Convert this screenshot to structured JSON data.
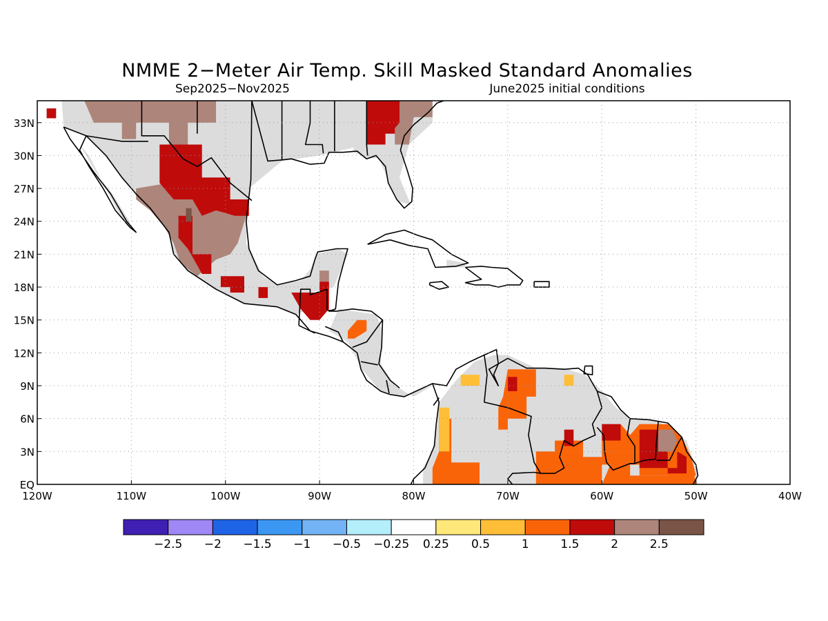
{
  "title": "NMME 2−Meter Air Temp. Skill Masked Standard Anomalies",
  "period": "Sep2025−Nov2025",
  "initial_conditions": "June2025 initial conditions",
  "map": {
    "lon_range": [
      -120,
      -40
    ],
    "lat_range": [
      0,
      35
    ],
    "lon_ticks": [
      {
        "lon": -120,
        "label": "120W"
      },
      {
        "lon": -110,
        "label": "110W"
      },
      {
        "lon": -100,
        "label": "100W"
      },
      {
        "lon": -90,
        "label": "90W"
      },
      {
        "lon": -80,
        "label": "80W"
      },
      {
        "lon": -70,
        "label": "70W"
      },
      {
        "lon": -60,
        "label": "60W"
      },
      {
        "lon": -50,
        "label": "50W"
      },
      {
        "lon": -40,
        "label": "40W"
      }
    ],
    "lat_ticks": [
      {
        "lat": 0,
        "label": "EQ"
      },
      {
        "lat": 3,
        "label": "3N"
      },
      {
        "lat": 6,
        "label": "6N"
      },
      {
        "lat": 9,
        "label": "9N"
      },
      {
        "lat": 12,
        "label": "12N"
      },
      {
        "lat": 15,
        "label": "15N"
      },
      {
        "lat": 18,
        "label": "18N"
      },
      {
        "lat": 21,
        "label": "21N"
      },
      {
        "lat": 24,
        "label": "24N"
      },
      {
        "lat": 27,
        "label": "27N"
      },
      {
        "lat": 30,
        "label": "30N"
      },
      {
        "lat": 33,
        "label": "33N"
      }
    ],
    "grid_lines": "dotted"
  },
  "colorbar": {
    "colors": [
      "#3f1fb4",
      "#9f87f5",
      "#1f64e6",
      "#3c97f3",
      "#73b3f5",
      "#b4eefa",
      "#ffffff",
      "#ffe87a",
      "#ffbe37",
      "#fa6409",
      "#c00b0b",
      "#ad857b",
      "#7a5446"
    ],
    "labels": [
      "−2.5",
      "−2",
      "−1.5",
      "−1",
      "−0.5",
      "−0.25",
      "0.25",
      "0.5",
      "1",
      "1.5",
      "2",
      "2.5"
    ]
  },
  "fill_colors": {
    "masked_gray": "#dcdcdc",
    "anom_1_to_1_5": "#fa6409",
    "anom_1_5_to_2": "#c00b0b",
    "anom_2_to_2_5": "#ad857b",
    "anom_above_2_5": "#7a5446",
    "anom_0_5_to_1": "#ffbe37"
  },
  "regions": [
    {
      "name": "western-us-mexico-masked",
      "cat": "gray",
      "pts": [
        [
          -117.4,
          35
        ],
        [
          -85,
          35
        ],
        [
          -85,
          31
        ],
        [
          -90,
          30
        ],
        [
          -94,
          29.5
        ],
        [
          -97.5,
          27
        ],
        [
          -97.8,
          22
        ],
        [
          -96,
          19
        ],
        [
          -94.5,
          18.2
        ],
        [
          -92,
          18.6
        ],
        [
          -91,
          19.6
        ],
        [
          -90.3,
          21
        ],
        [
          -88,
          21.5
        ],
        [
          -87,
          21
        ],
        [
          -88.5,
          18
        ],
        [
          -91,
          17.5
        ],
        [
          -91,
          16
        ],
        [
          -92.5,
          15.5
        ],
        [
          -94.5,
          16.2
        ],
        [
          -98,
          16.5
        ],
        [
          -101,
          17.8
        ],
        [
          -104,
          19.5
        ],
        [
          -105.5,
          21
        ],
        [
          -106,
          23
        ],
        [
          -108,
          25.2
        ],
        [
          -111,
          28
        ],
        [
          -112.7,
          30
        ],
        [
          -114.8,
          31.8
        ],
        [
          -117.2,
          32.6
        ]
      ]
    },
    {
      "name": "florida-georgia-masked",
      "cat": "gray",
      "pts": [
        [
          -84.5,
          35
        ],
        [
          -78,
          35
        ],
        [
          -78,
          33
        ],
        [
          -80.5,
          31
        ],
        [
          -81.5,
          28
        ],
        [
          -80.3,
          25.5
        ],
        [
          -81.6,
          25.8
        ],
        [
          -82.6,
          27.5
        ],
        [
          -83.7,
          29.8
        ],
        [
          -85,
          29.7
        ],
        [
          -86.5,
          30.4
        ]
      ]
    },
    {
      "name": "baja-masked",
      "cat": "gray",
      "pts": [
        [
          -115.5,
          31
        ],
        [
          -114.5,
          30
        ],
        [
          -113,
          27.5
        ],
        [
          -111.5,
          25
        ],
        [
          -110,
          23.2
        ],
        [
          -110.2,
          24
        ],
        [
          -112,
          26.5
        ],
        [
          -113.8,
          28.5
        ]
      ]
    },
    {
      "name": "cuba-masked",
      "cat": "gray",
      "pts": [
        [
          -76.5,
          20.5
        ],
        [
          -74.5,
          20.2
        ],
        [
          -74.5,
          19.8
        ],
        [
          -76.5,
          19.8
        ]
      ]
    },
    {
      "name": "central-america-masked",
      "cat": "gray",
      "pts": [
        [
          -88,
          16
        ],
        [
          -84,
          15.5
        ],
        [
          -83.3,
          14
        ],
        [
          -83.5,
          11
        ],
        [
          -82,
          9
        ],
        [
          -80,
          8
        ],
        [
          -78,
          9
        ],
        [
          -79.5,
          8.6
        ],
        [
          -81,
          8
        ],
        [
          -83.5,
          8.5
        ],
        [
          -85.5,
          10.5
        ],
        [
          -87,
          13
        ],
        [
          -89,
          14
        ]
      ]
    },
    {
      "name": "south-america-masked",
      "cat": "gray",
      "pts": [
        [
          -79,
          0
        ],
        [
          -79,
          1.5
        ],
        [
          -78,
          3
        ],
        [
          -77.5,
          5.5
        ],
        [
          -77.3,
          7.5
        ],
        [
          -75.5,
          9.5
        ],
        [
          -73.5,
          11.2
        ],
        [
          -71.5,
          11.8
        ],
        [
          -70,
          11.8
        ],
        [
          -67,
          10.6
        ],
        [
          -64,
          10.6
        ],
        [
          -61.8,
          10
        ],
        [
          -60,
          8.5
        ],
        [
          -58.5,
          7
        ],
        [
          -57,
          6
        ],
        [
          -54,
          5.8
        ],
        [
          -52,
          4.5
        ],
        [
          -51,
          4
        ],
        [
          -50,
          1.5
        ],
        [
          -49.8,
          0
        ]
      ]
    },
    {
      "name": "southwest-us-red",
      "cat": "r2",
      "pts": [
        [
          -119,
          34.3
        ],
        [
          -118,
          34.3
        ],
        [
          -118,
          33.4
        ],
        [
          -119,
          33.4
        ]
      ]
    },
    {
      "name": "arizona-brown",
      "cat": "br",
      "pts": [
        [
          -115,
          35
        ],
        [
          -101,
          35
        ],
        [
          -101,
          33
        ],
        [
          -104,
          33
        ],
        [
          -104,
          31
        ],
        [
          -106,
          31
        ],
        [
          -106,
          33
        ],
        [
          -109.5,
          33
        ],
        [
          -109.5,
          31.5
        ],
        [
          -111,
          31.5
        ],
        [
          -111,
          33
        ],
        [
          -114,
          33
        ]
      ]
    },
    {
      "name": "mexico-plateau-brown",
      "cat": "br",
      "pts": [
        [
          -109.5,
          27
        ],
        [
          -106,
          27.5
        ],
        [
          -102,
          27.5
        ],
        [
          -99.5,
          26
        ],
        [
          -97.8,
          24.5
        ],
        [
          -98.7,
          22
        ],
        [
          -99.5,
          21
        ],
        [
          -101,
          20.5
        ],
        [
          -103,
          19
        ],
        [
          -104.8,
          20.2
        ],
        [
          -105.5,
          22
        ],
        [
          -106.5,
          23.5
        ],
        [
          -108,
          25
        ],
        [
          -109.5,
          26
        ]
      ]
    },
    {
      "name": "mexico-north-red",
      "cat": "r2",
      "pts": [
        [
          -107,
          31
        ],
        [
          -102.5,
          31
        ],
        [
          -102.5,
          28
        ],
        [
          -99.5,
          28
        ],
        [
          -99.5,
          26
        ],
        [
          -97.5,
          26
        ],
        [
          -97.5,
          24.5
        ],
        [
          -99,
          24.5
        ],
        [
          -101,
          25
        ],
        [
          -102.5,
          24.5
        ],
        [
          -103.5,
          26
        ],
        [
          -105.5,
          26
        ],
        [
          -107,
          27.5
        ]
      ]
    },
    {
      "name": "mexico-west-red",
      "cat": "r2",
      "pts": [
        [
          -105,
          24.5
        ],
        [
          -103.5,
          24.5
        ],
        [
          -103.5,
          21
        ],
        [
          -101.5,
          21
        ],
        [
          -101.5,
          19.2
        ],
        [
          -102.5,
          19.2
        ],
        [
          -103,
          20
        ],
        [
          -104,
          21.5
        ],
        [
          -105,
          22.5
        ]
      ]
    },
    {
      "name": "mexico-south-red-1",
      "cat": "r2",
      "pts": [
        [
          -100.5,
          19
        ],
        [
          -98,
          19
        ],
        [
          -98,
          17.5
        ],
        [
          -99.5,
          17.5
        ],
        [
          -99.5,
          18
        ],
        [
          -100.5,
          18
        ]
      ]
    },
    {
      "name": "mexico-south-red-2",
      "cat": "r2",
      "pts": [
        [
          -96.5,
          18
        ],
        [
          -95.5,
          18
        ],
        [
          -95.5,
          17
        ],
        [
          -96.5,
          17
        ]
      ]
    },
    {
      "name": "mexico-dark-spot",
      "cat": "dk",
      "pts": [
        [
          -104.2,
          25.2
        ],
        [
          -103.6,
          25.2
        ],
        [
          -103.6,
          24
        ],
        [
          -104.2,
          24
        ]
      ]
    },
    {
      "name": "guatemala-red",
      "cat": "r2",
      "pts": [
        [
          -93,
          17.5
        ],
        [
          -90,
          17.5
        ],
        [
          -90,
          18.5
        ],
        [
          -89,
          18.5
        ],
        [
          -89,
          16
        ],
        [
          -90,
          15
        ],
        [
          -91,
          15
        ],
        [
          -92,
          16
        ]
      ]
    },
    {
      "name": "yucatan-brown",
      "cat": "br",
      "pts": [
        [
          -90,
          19.5
        ],
        [
          -89,
          19.5
        ],
        [
          -89,
          18.5
        ],
        [
          -90,
          18.5
        ]
      ]
    },
    {
      "name": "honduras-orange",
      "cat": "o15",
      "pts": [
        [
          -86,
          15
        ],
        [
          -85,
          15
        ],
        [
          -85,
          14
        ],
        [
          -86.3,
          13.3
        ],
        [
          -87,
          13.3
        ],
        [
          -87,
          14
        ]
      ]
    },
    {
      "name": "georgia-red",
      "cat": "r2",
      "pts": [
        [
          -85,
          35
        ],
        [
          -81,
          35
        ],
        [
          -81,
          32
        ],
        [
          -83,
          32
        ],
        [
          -83,
          31
        ],
        [
          -85,
          31
        ]
      ]
    },
    {
      "name": "carolina-brown",
      "cat": "br",
      "pts": [
        [
          -81.5,
          35
        ],
        [
          -78,
          35
        ],
        [
          -78,
          33.5
        ],
        [
          -80,
          33.5
        ],
        [
          -80.5,
          31
        ],
        [
          -82,
          31
        ],
        [
          -82,
          32.5
        ],
        [
          -81.5,
          33
        ]
      ]
    },
    {
      "name": "colombia-orange",
      "cat": "o15",
      "pts": [
        [
          -78,
          0
        ],
        [
          -73,
          0
        ],
        [
          -73,
          2
        ],
        [
          -76,
          2
        ],
        [
          -76,
          6
        ],
        [
          -77.3,
          6
        ],
        [
          -77.3,
          3
        ],
        [
          -78,
          1.5
        ]
      ]
    },
    {
      "name": "colombia-yellow",
      "cat": "y1",
      "pts": [
        [
          -77.3,
          7
        ],
        [
          -76.2,
          7
        ],
        [
          -76.2,
          3
        ],
        [
          -77.3,
          3
        ]
      ]
    },
    {
      "name": "venezuela-orange",
      "cat": "o15",
      "pts": [
        [
          -70,
          10.5
        ],
        [
          -67,
          10.5
        ],
        [
          -67,
          8
        ],
        [
          -68,
          8
        ],
        [
          -68,
          6
        ],
        [
          -70,
          6
        ],
        [
          -70,
          5
        ],
        [
          -71,
          5
        ],
        [
          -71,
          7
        ],
        [
          -70.5,
          8
        ]
      ]
    },
    {
      "name": "venezuela-red",
      "cat": "r2",
      "pts": [
        [
          -70,
          9.8
        ],
        [
          -69,
          9.8
        ],
        [
          -69,
          8.5
        ],
        [
          -70,
          8.5
        ]
      ]
    },
    {
      "name": "venezuela-yellow-1",
      "cat": "y1",
      "pts": [
        [
          -75,
          10
        ],
        [
          -73,
          10
        ],
        [
          -73,
          9
        ],
        [
          -75,
          9
        ]
      ]
    },
    {
      "name": "venezuela-yellow-2",
      "cat": "y1",
      "pts": [
        [
          -64,
          10
        ],
        [
          -63,
          10
        ],
        [
          -63,
          9
        ],
        [
          -64,
          9
        ]
      ]
    },
    {
      "name": "amazon-orange",
      "cat": "o15",
      "pts": [
        [
          -68,
          0
        ],
        [
          -60,
          0
        ],
        [
          -59,
          2
        ],
        [
          -57,
          2
        ],
        [
          -57,
          0.8
        ],
        [
          -55,
          0.8
        ],
        [
          -53,
          0.8
        ],
        [
          -51,
          1
        ],
        [
          -50.2,
          1
        ],
        [
          -50,
          0
        ],
        [
          -48,
          0
        ],
        [
          -48,
          -0.5
        ],
        [
          -68,
          -0.5
        ]
      ]
    },
    {
      "name": "guianas-orange",
      "cat": "o15",
      "pts": [
        [
          -67,
          3
        ],
        [
          -65,
          3
        ],
        [
          -65,
          4
        ],
        [
          -62,
          4
        ],
        [
          -62,
          2.5
        ],
        [
          -60,
          2.5
        ],
        [
          -60,
          5
        ],
        [
          -58,
          5.5
        ],
        [
          -57,
          4.5
        ],
        [
          -56,
          5.5
        ],
        [
          -53,
          5.5
        ],
        [
          -51.5,
          4.3
        ],
        [
          -50.5,
          2.5
        ],
        [
          -50,
          0.8
        ],
        [
          -56,
          0.8
        ],
        [
          -56,
          1.8
        ],
        [
          -60,
          1.8
        ],
        [
          -60,
          0
        ],
        [
          -67,
          0
        ]
      ]
    },
    {
      "name": "guyana-red",
      "cat": "r2",
      "pts": [
        [
          -60,
          5.5
        ],
        [
          -58,
          5.5
        ],
        [
          -58,
          4
        ],
        [
          -60,
          4
        ]
      ]
    },
    {
      "name": "venezuela-east-red",
      "cat": "r2",
      "pts": [
        [
          -64,
          5
        ],
        [
          -63,
          5
        ],
        [
          -63,
          3.5
        ],
        [
          -64,
          3.5
        ]
      ]
    },
    {
      "name": "suriname-red",
      "cat": "r2",
      "pts": [
        [
          -56,
          5
        ],
        [
          -54,
          5
        ],
        [
          -54,
          3
        ],
        [
          -53,
          3
        ],
        [
          -53,
          1
        ],
        [
          -51,
          1
        ],
        [
          -51,
          2.5
        ],
        [
          -52,
          3
        ],
        [
          -52,
          1.5
        ],
        [
          -56,
          1.5
        ]
      ]
    },
    {
      "name": "french-guiana-brown",
      "cat": "br",
      "pts": [
        [
          -54,
          5
        ],
        [
          -52.5,
          5
        ],
        [
          -52,
          4
        ],
        [
          -52.5,
          3
        ],
        [
          -54,
          3
        ]
      ]
    }
  ]
}
